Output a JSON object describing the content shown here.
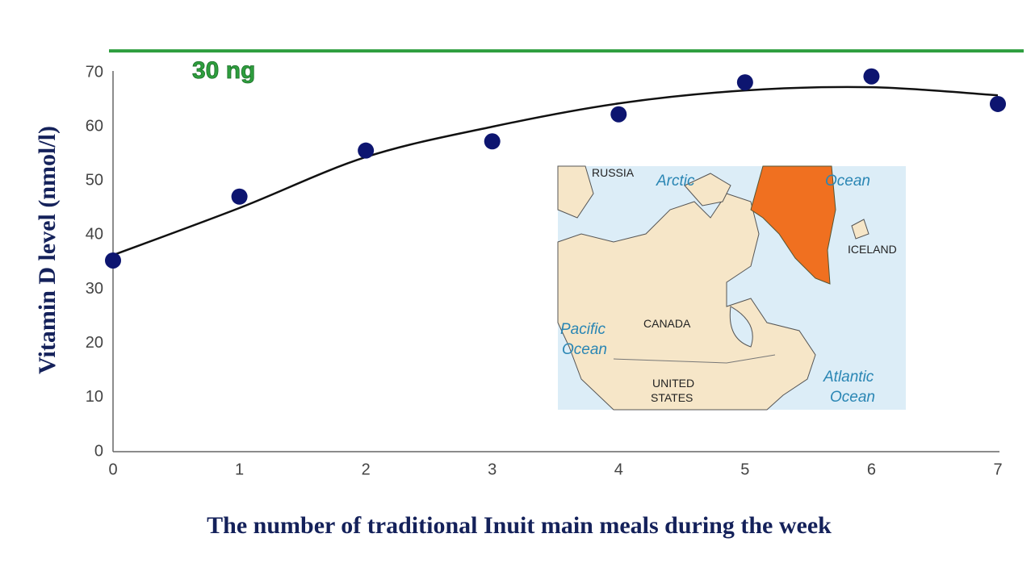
{
  "chart_data": {
    "type": "scatter",
    "x_label": "The number of traditional Inuit main meals during the week",
    "y_label": "Vitamin D level (nmol/l)",
    "x": [
      0,
      1,
      2,
      3,
      4,
      5,
      6,
      7
    ],
    "series": [
      {
        "type": "scatter",
        "color": "#0d1570",
        "values": [
          35.3,
          47.1,
          55.6,
          57.3,
          62.3,
          68.2,
          69.3,
          64.2
        ]
      },
      {
        "type": "line",
        "color": "#111111",
        "values": [
          36.3,
          45,
          54.4,
          60,
          64.3,
          66.7,
          67.3,
          65.8
        ]
      }
    ],
    "reference_line": {
      "value": 74,
      "label": "30 ng",
      "color": "#2e9e3e"
    },
    "xlim": [
      0,
      7
    ],
    "xticks": [
      0,
      1,
      2,
      3,
      4,
      5,
      6,
      7
    ],
    "ylim": [
      0,
      70
    ],
    "yticks": [
      0,
      10,
      20,
      30,
      40,
      50,
      60,
      70
    ]
  },
  "map_labels": {
    "russia": "RUSSIA",
    "arctic": "Arctic",
    "ocean_north": "Ocean",
    "iceland": "ICELAND",
    "pacific": "Pacific",
    "ocean_pacific": "Ocean",
    "canada": "CANADA",
    "united": "UNITED",
    "states": "STATES",
    "atlantic": "Atlantic",
    "ocean_atlantic": "Ocean"
  }
}
